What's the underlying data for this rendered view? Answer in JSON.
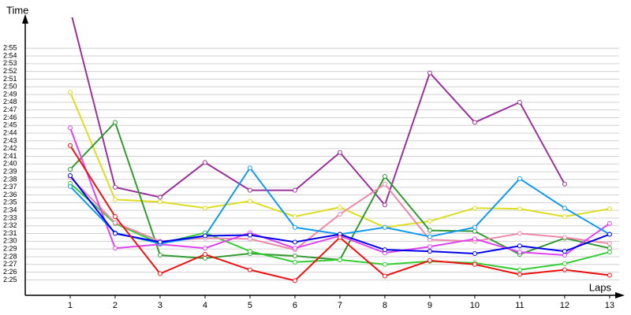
{
  "chart_data": {
    "type": "line",
    "y_label": "Time",
    "x_label": "Laps",
    "x": [
      1,
      2,
      3,
      4,
      5,
      6,
      7,
      8,
      9,
      10,
      11,
      12,
      13
    ],
    "xlim": [
      0,
      13.3
    ],
    "xticks": [
      1,
      2,
      3,
      4,
      5,
      6,
      7,
      8,
      9,
      10,
      11,
      12,
      13
    ],
    "ylim": [
      143,
      179
    ],
    "yticks": [
      {
        "value": 145,
        "label": "2:25"
      },
      {
        "value": 146,
        "label": "2:26"
      },
      {
        "value": 147,
        "label": "2:27"
      },
      {
        "value": 148,
        "label": "2:28"
      },
      {
        "value": 149,
        "label": "2:29"
      },
      {
        "value": 150,
        "label": "2:30"
      },
      {
        "value": 151,
        "label": "2:31"
      },
      {
        "value": 152,
        "label": "2:32"
      },
      {
        "value": 153,
        "label": "2:33"
      },
      {
        "value": 154,
        "label": "2:34"
      },
      {
        "value": 155,
        "label": "2:35"
      },
      {
        "value": 156,
        "label": "2:36"
      },
      {
        "value": 157,
        "label": "2:37"
      },
      {
        "value": 158,
        "label": "2:38"
      },
      {
        "value": 159,
        "label": "2:39"
      },
      {
        "value": 160,
        "label": "2:40"
      },
      {
        "value": 161,
        "label": "2:41"
      },
      {
        "value": 162,
        "label": "2:42"
      },
      {
        "value": 163,
        "label": "2:43"
      },
      {
        "value": 164,
        "label": "2:44"
      },
      {
        "value": 165,
        "label": "2:45"
      },
      {
        "value": 166,
        "label": "2:46"
      },
      {
        "value": 167,
        "label": "2:47"
      },
      {
        "value": 168,
        "label": "2:48"
      },
      {
        "value": 169,
        "label": "2:49"
      },
      {
        "value": 170,
        "label": "2:50"
      },
      {
        "value": 171,
        "label": "2:51"
      },
      {
        "value": 172,
        "label": "2:52"
      },
      {
        "value": 173,
        "label": "2:53"
      },
      {
        "value": 174,
        "label": "2:54"
      },
      {
        "value": 175,
        "label": "2:55"
      }
    ],
    "grid": true,
    "series": [
      {
        "color": "#993399",
        "values": [
          180,
          157,
          155.7,
          160.2,
          156.6,
          156.6,
          161.5,
          154.7,
          171.8,
          165.4,
          168,
          157.4,
          null
        ]
      },
      {
        "color": "#dddd22",
        "values": [
          169.3,
          155.4,
          155.1,
          154.3,
          155.2,
          153.2,
          154.4,
          151.8,
          152.6,
          154.3,
          154.2,
          153.2,
          154.2
        ]
      },
      {
        "color": "#339933",
        "values": [
          159.3,
          165.4,
          148.2,
          147.8,
          148.4,
          148.1,
          147.6,
          158.4,
          151.4,
          151.3,
          148.3,
          150.4,
          149.1
        ]
      },
      {
        "color": "#33cc33",
        "values": [
          157.5,
          152.3,
          149.7,
          151.1,
          148.7,
          147.3,
          147.6,
          147,
          147.4,
          147.2,
          146.3,
          147.1,
          148.6
        ]
      },
      {
        "color": "#ee88aa",
        "values": [
          158.3,
          152.4,
          150,
          150.4,
          150.3,
          148.9,
          153.5,
          157.4,
          150.2,
          150,
          151,
          150.5,
          149.7
        ]
      },
      {
        "color": "#dd44ee",
        "values": [
          164.7,
          149.1,
          149.6,
          149.1,
          151.1,
          149.1,
          150.7,
          148.5,
          149.3,
          150.3,
          148.6,
          148.2,
          152.3
        ]
      },
      {
        "color": "#1199ee",
        "values": [
          157.1,
          151.1,
          149.7,
          150.7,
          159.5,
          151.8,
          150.9,
          151.8,
          150.6,
          151.8,
          158.1,
          154.3,
          150.9
        ]
      },
      {
        "color": "#0000ee",
        "values": [
          158.5,
          151,
          149.9,
          150.7,
          150.8,
          149.9,
          150.9,
          148.9,
          148.7,
          148.4,
          149.4,
          148.7,
          150.9
        ]
      },
      {
        "color": "#ee1111",
        "values": [
          162.4,
          153.2,
          145.8,
          148.3,
          146.3,
          144.9,
          150.5,
          145.5,
          147.5,
          147,
          145.7,
          146.3,
          145.6
        ]
      }
    ]
  }
}
